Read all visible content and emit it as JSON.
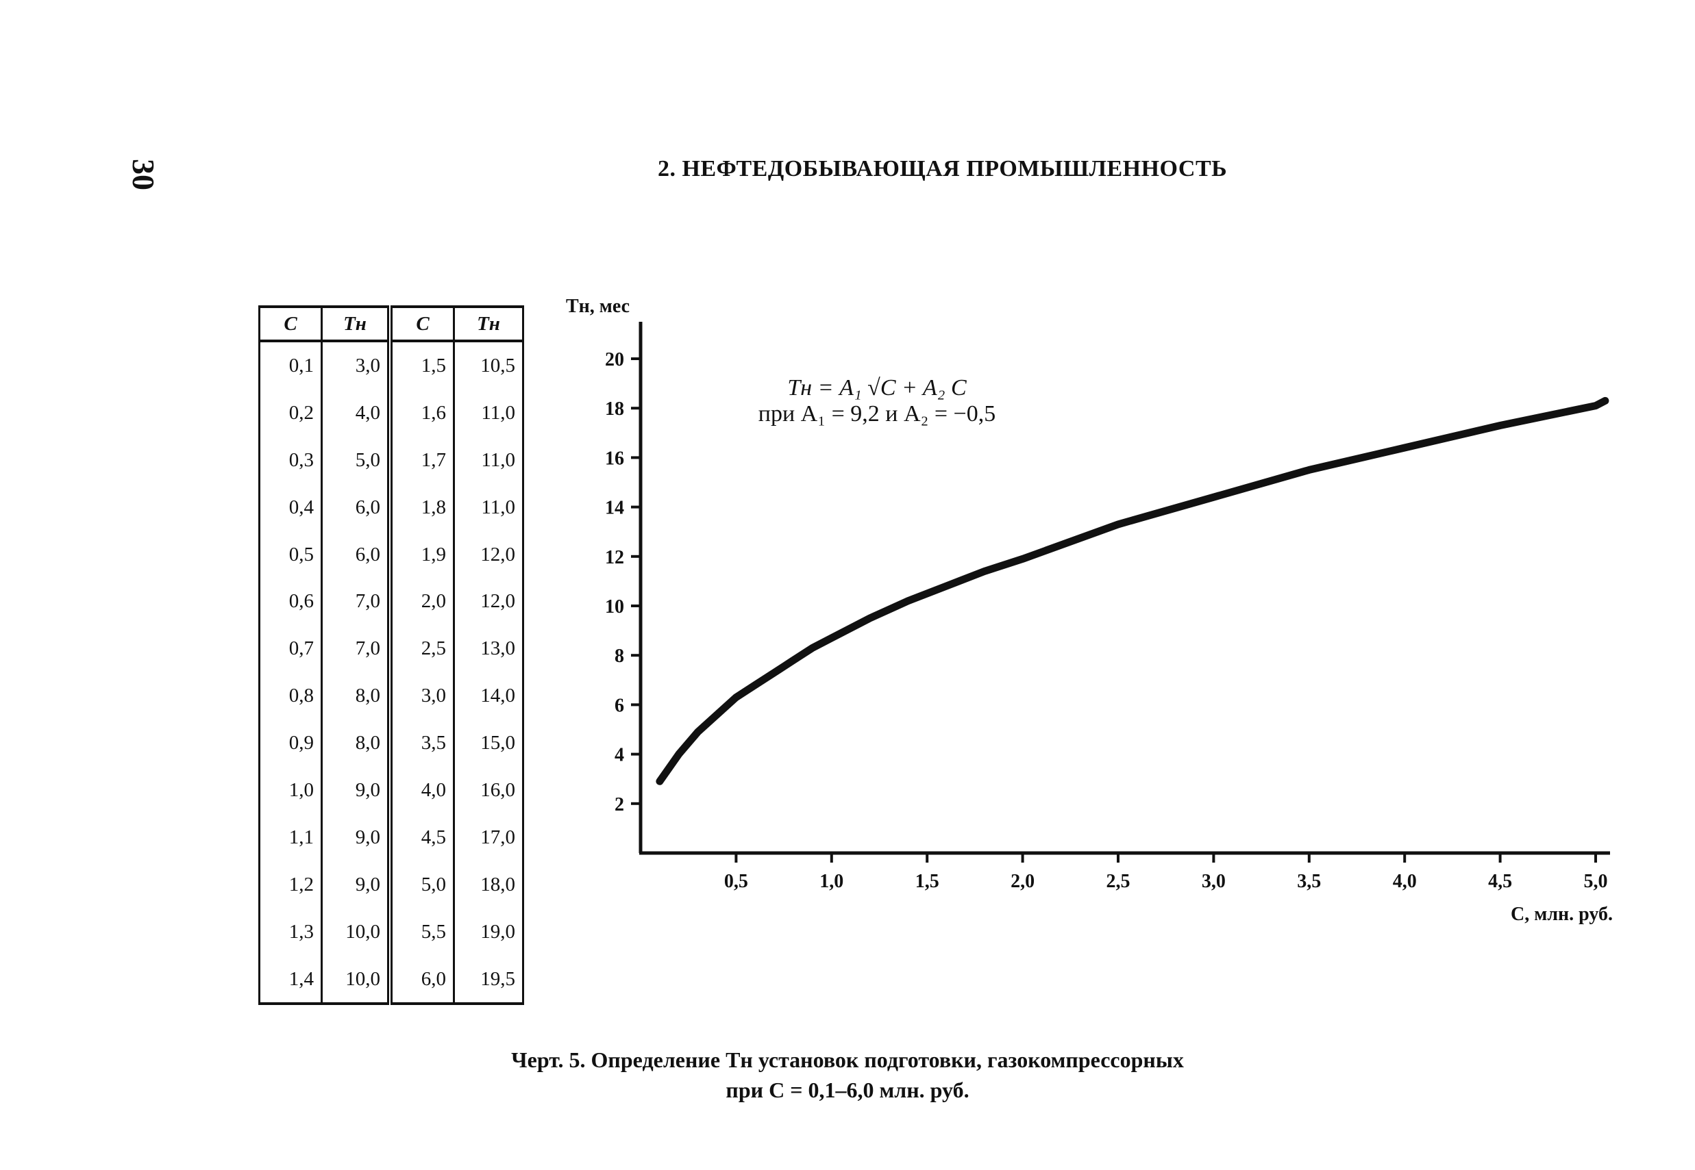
{
  "page": {
    "number": "30",
    "header": "2. НЕФТЕДОБЫВАЮЩАЯ ПРОМЫШЛЕННОСТЬ"
  },
  "table": {
    "headers": [
      "C",
      "Tн",
      "C",
      "Tн"
    ],
    "rows": [
      [
        "0,1",
        "3,0",
        "1,5",
        "10,5"
      ],
      [
        "0,2",
        "4,0",
        "1,6",
        "11,0"
      ],
      [
        "0,3",
        "5,0",
        "1,7",
        "11,0"
      ],
      [
        "0,4",
        "6,0",
        "1,8",
        "11,0"
      ],
      [
        "0,5",
        "6,0",
        "1,9",
        "12,0"
      ],
      [
        "0,6",
        "7,0",
        "2,0",
        "12,0"
      ],
      [
        "0,7",
        "7,0",
        "2,5",
        "13,0"
      ],
      [
        "0,8",
        "8,0",
        "3,0",
        "14,0"
      ],
      [
        "0,9",
        "8,0",
        "3,5",
        "15,0"
      ],
      [
        "1,0",
        "9,0",
        "4,0",
        "16,0"
      ],
      [
        "1,1",
        "9,0",
        "4,5",
        "17,0"
      ],
      [
        "1,2",
        "9,0",
        "5,0",
        "18,0"
      ],
      [
        "1,3",
        "10,0",
        "5,5",
        "19,0"
      ],
      [
        "1,4",
        "10,0",
        "6,0",
        "19,5"
      ]
    ]
  },
  "formula": {
    "line1": "Tн = A₁ √C + A₂ C",
    "line2": "при A₁ = 9,2 и A₂ = −0,5"
  },
  "caption": {
    "line1": "Черт. 5. Определение Tн установок подготовки, газокомпрессорных",
    "line2": "при C = 0,1–6,0 млн. руб."
  },
  "chart_data": {
    "type": "line",
    "ylabel": "Tн, мес",
    "xlabel": "C, млн. руб.",
    "xlim": [
      0,
      5.1
    ],
    "ylim": [
      0,
      21
    ],
    "x_ticks": [
      0.5,
      1.0,
      1.5,
      2.0,
      2.5,
      3.0,
      3.5,
      4.0,
      4.5,
      5.0
    ],
    "x_tick_labels": [
      "0,5",
      "1,0",
      "1,5",
      "2,0",
      "2,5",
      "3,0",
      "3,5",
      "4,0",
      "4,5",
      "5,0"
    ],
    "y_ticks": [
      2,
      4,
      6,
      8,
      10,
      12,
      14,
      16,
      18,
      20
    ],
    "y_tick_labels": [
      "2",
      "4",
      "6",
      "8",
      "10",
      "12",
      "14",
      "16",
      "18",
      "20"
    ],
    "grid": false,
    "series": [
      {
        "x": [
          0.1,
          0.2,
          0.3,
          0.4,
          0.5,
          0.6,
          0.7,
          0.8,
          0.9,
          1.0,
          1.2,
          1.4,
          1.6,
          1.8,
          2.0,
          2.5,
          3.0,
          3.5,
          4.0,
          4.5,
          5.0,
          5.05
        ],
        "y": [
          2.9,
          4.0,
          4.9,
          5.6,
          6.3,
          6.8,
          7.3,
          7.8,
          8.3,
          8.7,
          9.5,
          10.2,
          10.8,
          11.4,
          11.9,
          13.3,
          14.4,
          15.5,
          16.4,
          17.3,
          18.1,
          18.3
        ]
      }
    ]
  }
}
